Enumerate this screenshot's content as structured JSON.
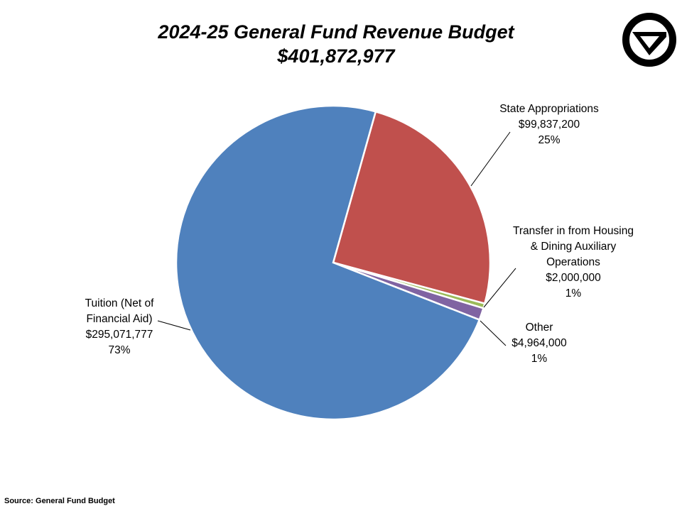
{
  "chart_data": {
    "type": "pie",
    "title": "2024-25 General Fund Revenue Budget",
    "subtitle": "$401,872,977",
    "slices": [
      {
        "name": "State Appropriations",
        "value": 99837200,
        "value_label": "$99,837,200",
        "percent_label": "25%",
        "color": "#c0504d"
      },
      {
        "name": "Transfer in from Housing & Dining Auxiliary Operations",
        "value": 2000000,
        "value_label": "$2,000,000",
        "percent_label": "1%",
        "color": "#9bbb59"
      },
      {
        "name": "Other",
        "value": 4964000,
        "value_label": "$4,964,000",
        "percent_label": "1%",
        "color": "#8064a2"
      },
      {
        "name": "Tuition (Net of Financial Aid)",
        "value": 295071777,
        "value_label": "$295,071,777",
        "percent_label": "73%",
        "color": "#4f81bd"
      }
    ],
    "start_angle_deg": 15.7,
    "source": "Source: General Fund Budget"
  }
}
